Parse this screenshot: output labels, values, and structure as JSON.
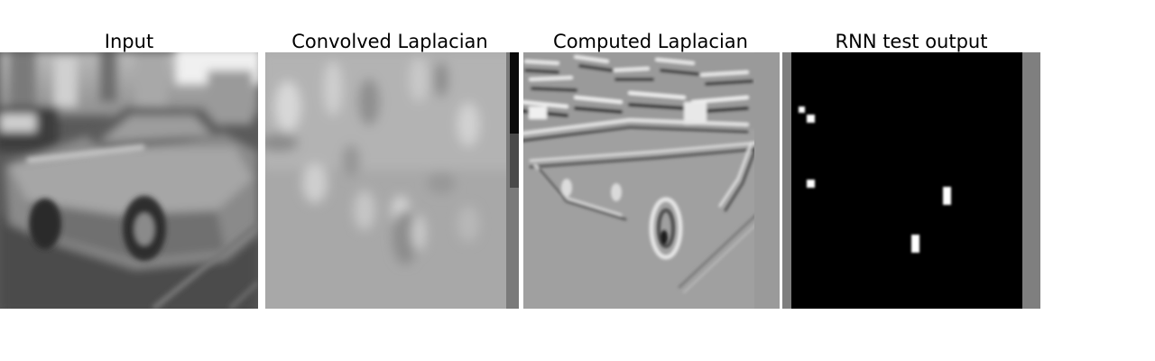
{
  "figure": {
    "panels": [
      {
        "title": "Input",
        "image": "grayscale-car-photo"
      },
      {
        "title": "Convolved Laplacian",
        "image": "smooth-laplacian-map"
      },
      {
        "title": "Computed Laplacian",
        "image": "edge-laplacian-map"
      },
      {
        "title": "RNN test output",
        "image": "sparse-white-dots-on-black"
      }
    ]
  }
}
